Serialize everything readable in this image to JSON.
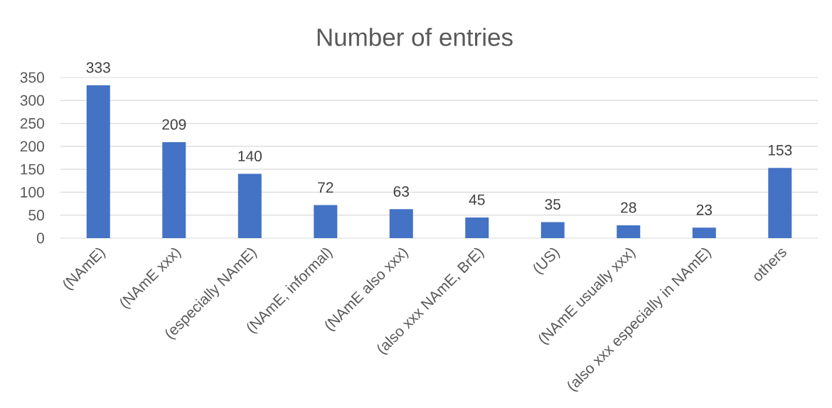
{
  "chart_data": {
    "type": "bar",
    "title": "Number of entries",
    "categories": [
      "(NAmE)",
      "(NAmE xxx)",
      "(especially NAmE)",
      "(NAmE, informal)",
      "(NAmE also xxx)",
      "(also xxx NAmE, BrE)",
      "(US)",
      "(NAmE usually xxx)",
      "(also xxx especially in NAmE)",
      "others"
    ],
    "values": [
      333,
      209,
      140,
      72,
      63,
      45,
      35,
      28,
      23,
      153
    ],
    "color": "#4472c4",
    "ylim": [
      0,
      350
    ],
    "yticks": [
      0,
      50,
      100,
      150,
      200,
      250,
      300,
      350
    ],
    "grid": "y",
    "data_labels": true
  }
}
